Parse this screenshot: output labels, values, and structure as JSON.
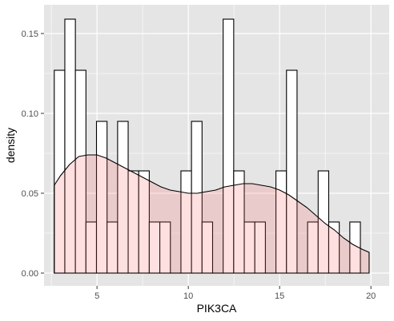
{
  "chart_data": {
    "type": "bar",
    "title": "",
    "xlabel": "PIK3CA",
    "ylabel": "density",
    "xlim": [
      2.1,
      21.0
    ],
    "ylim": [
      -0.008,
      0.168
    ],
    "x_ticks": [
      5,
      10,
      15,
      20
    ],
    "x_tick_labels": [
      "5",
      "10",
      "15",
      "20"
    ],
    "y_ticks": [
      0.0,
      0.05,
      0.1,
      0.15
    ],
    "y_tick_labels": [
      "0.00",
      "0.05",
      "0.10",
      "0.15"
    ],
    "grid": true,
    "legend": "none",
    "colors": {
      "panel_bg": "#e5e5e5",
      "grid": "#ffffff",
      "bar_fill": "#ffffff",
      "bar_stroke": "#000000",
      "density_fill": "#ff6666",
      "density_fill_opacity": 0.2,
      "density_stroke": "#000000"
    },
    "histogram": {
      "bin_start": 2.66,
      "bin_width": 0.578,
      "densities": [
        0.127,
        0.159,
        0.127,
        0.032,
        0.095,
        0.032,
        0.095,
        0.064,
        0.064,
        0.032,
        0.032,
        0,
        0.064,
        0.095,
        0.032,
        0,
        0.159,
        0.064,
        0.032,
        0.032,
        0,
        0.064,
        0.127,
        0,
        0.032,
        0.064,
        0.032,
        0,
        0.032
      ]
    },
    "density_curve": {
      "x": [
        2.66,
        3.0,
        3.5,
        4.0,
        4.5,
        5.0,
        5.5,
        6.0,
        6.5,
        7.0,
        7.5,
        8.0,
        8.5,
        9.0,
        9.5,
        10.0,
        10.5,
        11.0,
        11.5,
        12.0,
        12.5,
        13.0,
        13.5,
        14.0,
        14.5,
        15.0,
        15.5,
        16.0,
        16.5,
        17.0,
        17.5,
        18.0,
        18.5,
        19.0,
        19.5,
        19.9
      ],
      "y": [
        0.055,
        0.061,
        0.068,
        0.073,
        0.074,
        0.074,
        0.072,
        0.069,
        0.066,
        0.063,
        0.06,
        0.057,
        0.054,
        0.052,
        0.051,
        0.05,
        0.05,
        0.051,
        0.052,
        0.054,
        0.055,
        0.056,
        0.056,
        0.055,
        0.054,
        0.052,
        0.049,
        0.045,
        0.041,
        0.036,
        0.031,
        0.027,
        0.022,
        0.018,
        0.015,
        0.013
      ]
    }
  }
}
